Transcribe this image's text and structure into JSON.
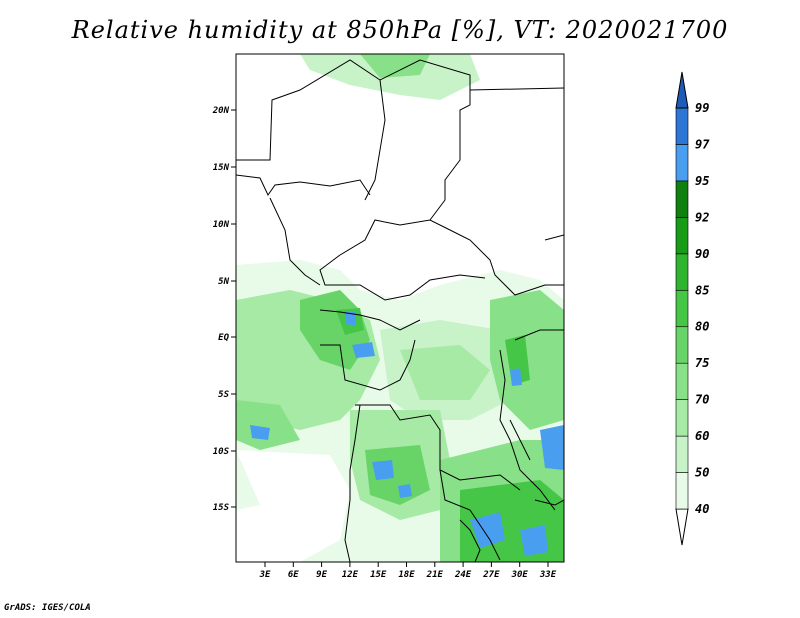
{
  "title": "Relative humidity at 850hPa [%], VT: 2020021700",
  "credit": "GrADS: IGES/COLA",
  "map": {
    "lat_labels": [
      "20N",
      "15N",
      "10N",
      "5N",
      "EQ",
      "5S",
      "10S",
      "15S"
    ],
    "lon_labels": [
      "3E",
      "6E",
      "9E",
      "12E",
      "15E",
      "18E",
      "21E",
      "24E",
      "27E",
      "30E",
      "33E"
    ],
    "colors": {
      "land_dry": "#ffffff",
      "border": "#000000"
    }
  },
  "colorbar": {
    "labels": [
      "40",
      "50",
      "60",
      "70",
      "75",
      "80",
      "85",
      "90",
      "92",
      "95",
      "97",
      "99"
    ],
    "colors": [
      "#ffffff",
      "#e8fae8",
      "#c8f2c8",
      "#a6eaa6",
      "#88e088",
      "#68d468",
      "#46c646",
      "#2eb42e",
      "#189c18",
      "#108010",
      "#4a9ef0",
      "#2e76d6",
      "#1e5ab8"
    ]
  }
}
